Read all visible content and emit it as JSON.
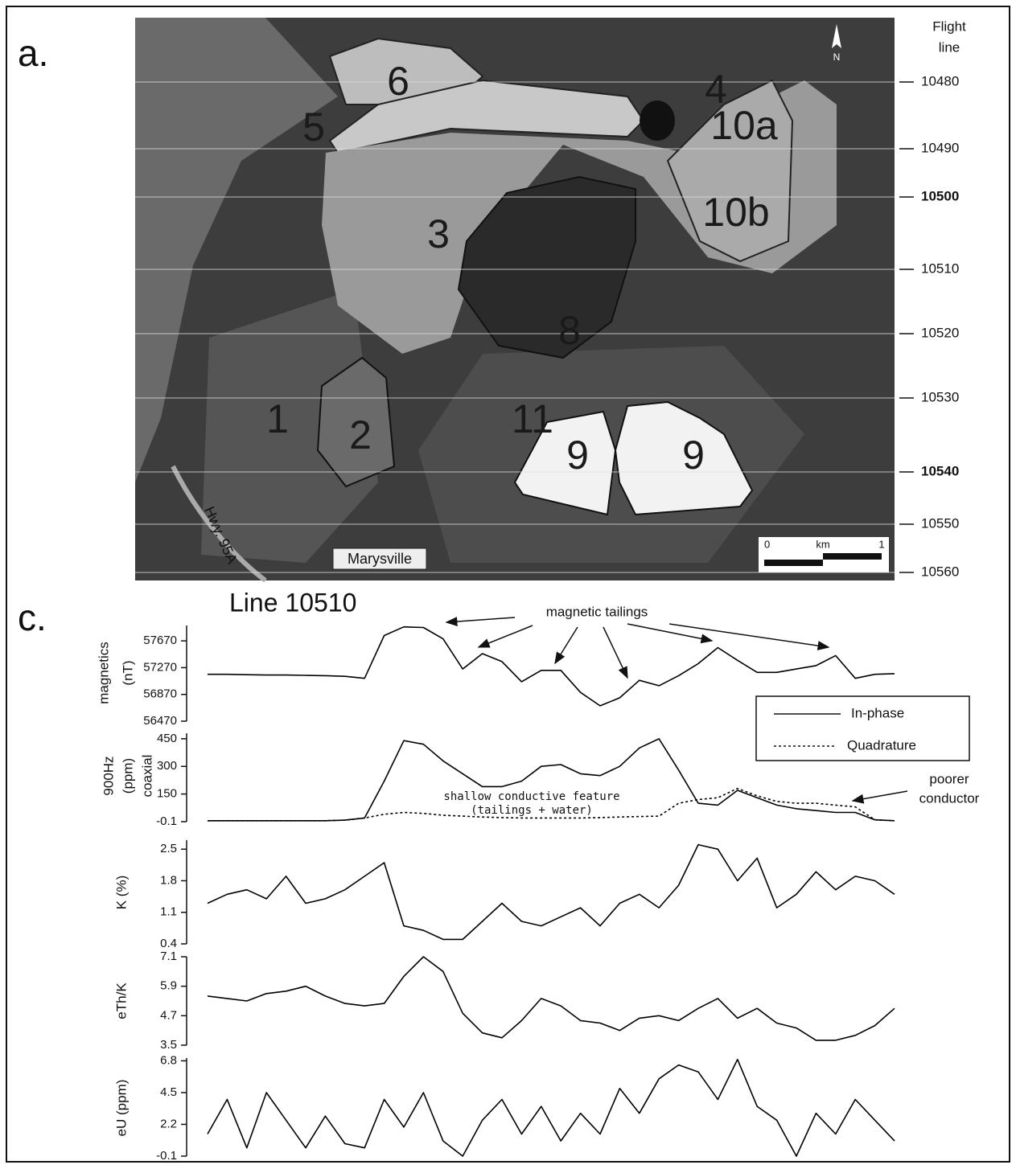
{
  "panel_a": {
    "label": "a.",
    "flight_line_header": [
      "Flight",
      "line"
    ],
    "flight_lines": [
      "10480",
      "10490",
      "10500",
      "10510",
      "10520",
      "10530",
      "10540",
      "10550",
      "10560"
    ],
    "areas": [
      "6",
      "5",
      "4",
      "10a",
      "10b",
      "3",
      "8",
      "1",
      "2",
      "11",
      "9",
      "9"
    ],
    "road": "Hwy. 95A",
    "town": "Marysville",
    "scale": {
      "start": "0",
      "unit": "km",
      "end": "1"
    },
    "north": "N"
  },
  "panel_c": {
    "label": "c.",
    "title": "Line 10510"
  },
  "chart_data": [
    {
      "type": "line",
      "y_label": [
        "magnetics",
        "(nT)"
      ],
      "ylim": [
        56470,
        57900
      ],
      "yticks": [
        57670,
        57270,
        56870,
        56470
      ],
      "color": "#000",
      "annotations": [
        "magnetic tailings"
      ],
      "values": [
        57170,
        57170,
        57165,
        57160,
        57160,
        57155,
        57150,
        57140,
        57110,
        57750,
        57880,
        57870,
        57700,
        57250,
        57480,
        57360,
        57060,
        57230,
        57230,
        56900,
        56700,
        56820,
        57080,
        57000,
        57150,
        57330,
        57570,
        57380,
        57200,
        57200,
        57250,
        57300,
        57450,
        57110,
        57170,
        57180
      ]
    },
    {
      "type": "line",
      "y_label": [
        "900Hz",
        "(ppm)",
        "coaxial"
      ],
      "ylim": [
        -0.1,
        480
      ],
      "yticks": [
        450,
        300,
        150,
        -0.1
      ],
      "annotations": [
        "shallow conductive feature",
        "(tailings + water)",
        "poorer",
        "conductor"
      ],
      "series": [
        {
          "name": "In-phase",
          "color": "#000",
          "style": "solid",
          "values": [
            5,
            5,
            5,
            5,
            5,
            5,
            5,
            8,
            20,
            220,
            440,
            420,
            330,
            260,
            190,
            190,
            220,
            300,
            310,
            260,
            250,
            300,
            400,
            450,
            280,
            100,
            90,
            170,
            130,
            90,
            70,
            60,
            50,
            50,
            10,
            5
          ]
        },
        {
          "name": "Quadrature",
          "color": "#000",
          "style": "dotted",
          "values": [
            5,
            5,
            5,
            5,
            5,
            5,
            5,
            8,
            20,
            40,
            50,
            45,
            35,
            30,
            25,
            22,
            20,
            20,
            20,
            20,
            22,
            25,
            28,
            30,
            100,
            120,
            130,
            180,
            140,
            110,
            100,
            100,
            90,
            80,
            10,
            5
          ]
        }
      ]
    },
    {
      "type": "line",
      "y_label": [
        "K (%)"
      ],
      "ylim": [
        0.4,
        2.7
      ],
      "yticks": [
        2.5,
        1.8,
        1.1,
        0.4
      ],
      "color": "#000",
      "values": [
        1.3,
        1.5,
        1.6,
        1.4,
        1.9,
        1.3,
        1.4,
        1.6,
        1.9,
        2.2,
        0.8,
        0.7,
        0.5,
        0.5,
        0.9,
        1.3,
        0.9,
        0.8,
        1.0,
        1.2,
        0.8,
        1.3,
        1.5,
        1.2,
        1.7,
        2.6,
        2.5,
        1.8,
        2.3,
        1.2,
        1.5,
        2.0,
        1.6,
        1.9,
        1.8,
        1.5
      ]
    },
    {
      "type": "line",
      "y_label": [
        "eTh/K"
      ],
      "ylim": [
        3.5,
        7.1
      ],
      "yticks": [
        7.1,
        5.9,
        4.7,
        3.5
      ],
      "color": "#000",
      "values": [
        5.5,
        5.4,
        5.3,
        5.6,
        5.7,
        5.9,
        5.5,
        5.2,
        5.1,
        5.2,
        6.3,
        7.1,
        6.5,
        4.8,
        4.0,
        3.8,
        4.5,
        5.4,
        5.1,
        4.5,
        4.4,
        4.1,
        4.6,
        4.7,
        4.5,
        5.0,
        5.4,
        4.6,
        5.0,
        4.4,
        4.2,
        3.7,
        3.7,
        3.9,
        4.3,
        5.0
      ]
    },
    {
      "type": "line",
      "y_label": [
        "eU (ppm)"
      ],
      "ylim": [
        -0.1,
        7.0
      ],
      "yticks": [
        6.8,
        4.5,
        2.2,
        -0.1
      ],
      "color": "#000",
      "values": [
        1.5,
        4.0,
        0.5,
        4.5,
        2.5,
        0.5,
        2.8,
        0.8,
        0.5,
        4.0,
        2.0,
        4.5,
        1.0,
        -0.1,
        2.5,
        4.0,
        1.5,
        3.5,
        1.0,
        3.0,
        1.5,
        4.8,
        3.0,
        5.5,
        6.5,
        6.0,
        4.0,
        6.9,
        3.5,
        2.5,
        -0.1,
        3.0,
        1.5,
        4.0,
        2.5,
        1.0
      ]
    }
  ]
}
